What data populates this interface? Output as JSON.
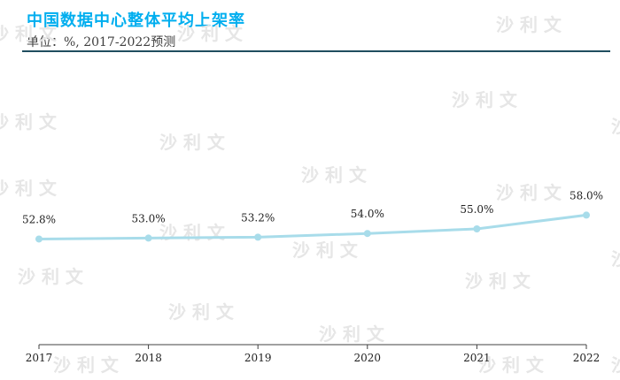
{
  "header": {
    "title": "中国数据中心整体平均上架率",
    "subtitle": "单位：%, 2017-2022预测"
  },
  "watermark": {
    "text": "沙 利 文"
  },
  "colors": {
    "title": "#00aeef",
    "line": "#a8dcea",
    "marker": "#a8dcea",
    "axis": "#404040",
    "rule": "#1f4e5f"
  },
  "chart_data": {
    "type": "line",
    "categories": [
      "2017",
      "2018",
      "2019",
      "2020",
      "2021",
      "2022"
    ],
    "series": [
      {
        "values": [
          52.8,
          53.0,
          53.2,
          54.0,
          55.0,
          58.0
        ],
        "labels": [
          "52.8%",
          "53.0%",
          "53.2%",
          "54.0%",
          "55.0%",
          "58.0%"
        ]
      }
    ],
    "title": "中国数据中心整体平均上架率",
    "subtitle": "单位：%, 2017-2022预测",
    "xlabel": "",
    "ylabel": "",
    "ylim": [
      0,
      100
    ],
    "grid": false,
    "legend": "none"
  }
}
